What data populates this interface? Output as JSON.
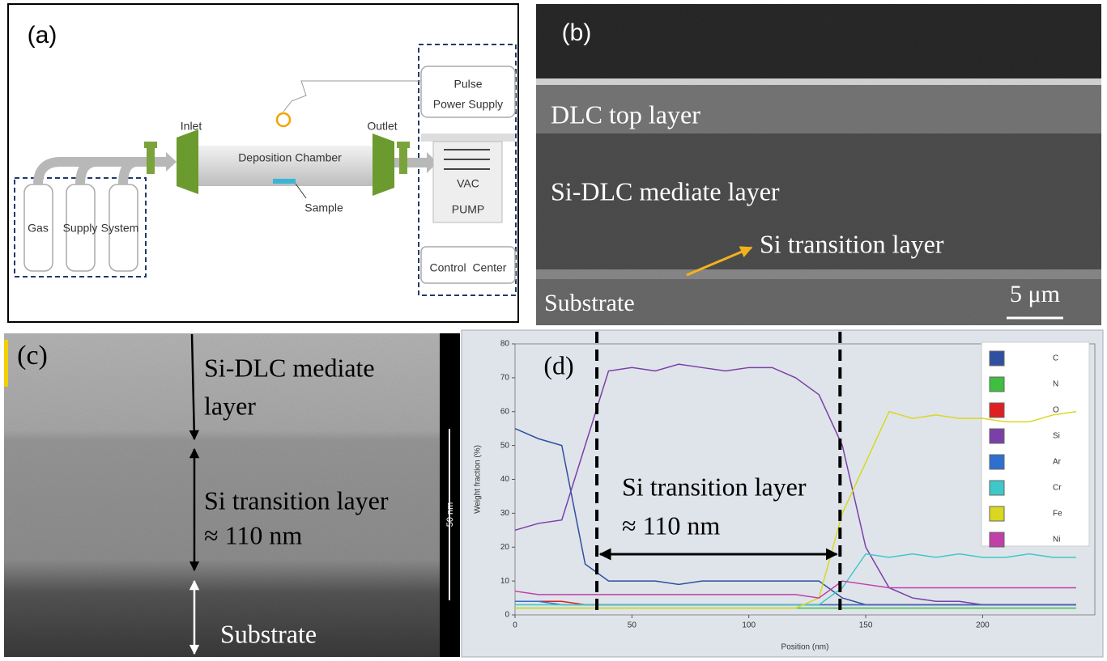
{
  "panels": {
    "a": {
      "label": "(a)",
      "pulse": "Pulse",
      "power_supply": "Power Supply",
      "inlet": "Inlet",
      "outlet": "Outlet",
      "chamber": "Deposition Chamber",
      "sample": "Sample",
      "vac": "VAC",
      "pump": "PUMP",
      "gas_supply_system": [
        "Gas",
        "Supply",
        "System"
      ],
      "control_center": "Control  Center"
    },
    "b": {
      "label": "(b)",
      "top": "DLC top layer",
      "mediate": "Si-DLC mediate layer",
      "transition": "Si transition layer",
      "substrate": "Substrate",
      "scale": "5 μm"
    },
    "c": {
      "label": "(c)",
      "mediate": [
        "Si-DLC mediate",
        "layer"
      ],
      "transition": "Si transition layer",
      "thickness": "≈ 110 nm",
      "substrate": "Substrate",
      "scale": "50 nm"
    }
  },
  "chart_data": {
    "type": "line",
    "label": "(d)",
    "x_label": "Position (nm)",
    "y_label": "Weight fraction (%)",
    "annotations": [
      "Si transition layer",
      "≈ 110 nm"
    ],
    "vlines": [
      35,
      139
    ],
    "xlim": [
      0,
      248
    ],
    "xticks": [
      0,
      50,
      100,
      150,
      200
    ],
    "ylim": [
      0,
      80
    ],
    "yticks": [
      0,
      10,
      20,
      30,
      40,
      50,
      60,
      70,
      80
    ],
    "x": [
      0,
      10,
      20,
      30,
      40,
      50,
      60,
      70,
      80,
      90,
      100,
      110,
      120,
      130,
      140,
      150,
      160,
      170,
      180,
      190,
      200,
      210,
      220,
      230,
      240
    ],
    "series": [
      {
        "name": "C",
        "color": "#2f4fa0",
        "values": [
          55,
          52,
          50,
          15,
          10,
          10,
          10,
          9,
          10,
          10,
          10,
          10,
          10,
          10,
          5,
          3,
          3,
          3,
          3,
          3,
          3,
          3,
          3,
          3,
          3
        ]
      },
      {
        "name": "N",
        "color": "#3fbf3f",
        "values": [
          2,
          2,
          2,
          2,
          2,
          2,
          2,
          2,
          2,
          2,
          2,
          2,
          2,
          2,
          2,
          2,
          2,
          2,
          2,
          2,
          2,
          2,
          2,
          2,
          2
        ]
      },
      {
        "name": "O",
        "color": "#e02020",
        "values": [
          4,
          4,
          4,
          3,
          3,
          3,
          3,
          3,
          3,
          3,
          3,
          3,
          3,
          3,
          3,
          3,
          3,
          3,
          3,
          3,
          3,
          3,
          3,
          3,
          3
        ]
      },
      {
        "name": "Si",
        "color": "#7b3fa8",
        "values": [
          25,
          27,
          28,
          50,
          72,
          73,
          72,
          74,
          73,
          72,
          73,
          73,
          70,
          65,
          50,
          20,
          8,
          5,
          4,
          4,
          3,
          3,
          3,
          3,
          3
        ]
      },
      {
        "name": "Ar",
        "color": "#2f6fd0",
        "values": [
          4,
          4,
          3,
          3,
          3,
          3,
          3,
          3,
          3,
          3,
          3,
          3,
          3,
          3,
          3,
          3,
          3,
          3,
          3,
          3,
          3,
          3,
          3,
          3,
          3
        ]
      },
      {
        "name": "Cr",
        "color": "#3fc8c8",
        "values": [
          3,
          3,
          3,
          3,
          3,
          3,
          3,
          3,
          3,
          3,
          3,
          3,
          3,
          3,
          8,
          18,
          17,
          18,
          17,
          18,
          17,
          17,
          18,
          17,
          17
        ]
      },
      {
        "name": "Fe",
        "color": "#d8d820",
        "values": [
          2,
          2,
          2,
          2,
          2,
          2,
          2,
          2,
          2,
          2,
          2,
          2,
          2,
          5,
          30,
          45,
          60,
          58,
          59,
          58,
          58,
          57,
          57,
          59,
          60
        ]
      },
      {
        "name": "Ni",
        "color": "#c03fa8",
        "values": [
          7,
          6,
          6,
          6,
          6,
          6,
          6,
          6,
          6,
          6,
          6,
          6,
          6,
          5,
          10,
          9,
          8,
          8,
          8,
          8,
          8,
          8,
          8,
          8,
          8
        ]
      }
    ]
  }
}
